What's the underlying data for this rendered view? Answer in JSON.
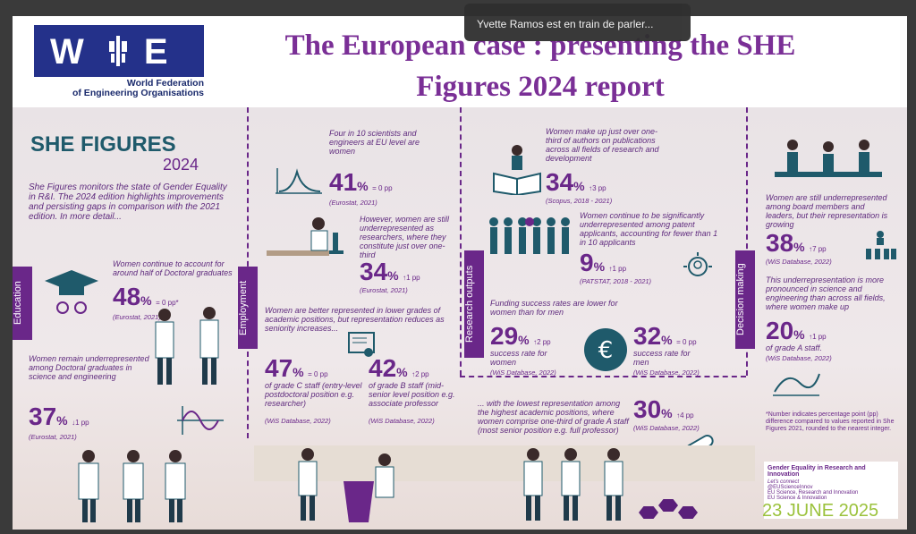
{
  "toast": {
    "text": "Yvette Ramos est en train de parler..."
  },
  "logo": {
    "letters": "W E",
    "org_line1": "World Federation",
    "org_line2": "of Engineering Organisations"
  },
  "slide": {
    "title_line1": "The European case : presenting the SHE",
    "title_line2": "Figures 2024 report",
    "date": "23 JUNE 2025"
  },
  "infographic": {
    "heading": "SHE FIGURES",
    "year": "2024",
    "intro": "She Figures monitors the state of Gender Equality in R&I. The 2024 edition highlights improvements and persisting gaps in comparison with the 2021 edition. In more detail...",
    "sections": {
      "education": "Education",
      "employment": "Employment",
      "research": "Research outputs",
      "decision": "Decision making"
    },
    "edu1": {
      "text": "Women continue to account for around half of Doctoral graduates",
      "value": "48",
      "unit": "%",
      "delta": "= 0 pp*",
      "source": "(Eurostat, 2021)"
    },
    "edu2": {
      "text": "Women remain underrepresented among Doctoral graduates in science and engineering",
      "value": "37",
      "unit": "%",
      "delta": "↓1 pp",
      "source": "(Eurostat, 2021)"
    },
    "emp1": {
      "text": "Four in 10 scientists and engineers at EU level are women",
      "value": "41",
      "unit": "%",
      "delta": "= 0 pp",
      "source": "(Eurostat, 2021)"
    },
    "emp2": {
      "text": "However, women are still underrepresented as researchers, where they constitute just over one-third",
      "value": "34",
      "unit": "%",
      "delta": "↑1 pp",
      "source": "(Eurostat, 2021)"
    },
    "emp3": {
      "text": "Women are better represented in lower grades of academic positions, but representation reduces as seniority increases..."
    },
    "emp4": {
      "value": "47",
      "unit": "%",
      "delta": "= 0 pp",
      "text": "of grade C staff (entry-level postdoctoral position e.g. researcher)",
      "source": "(WiS Database, 2022)"
    },
    "emp5": {
      "value": "42",
      "unit": "%",
      "delta": "↑2 pp",
      "text": "of grade B staff (mid-senior level position e.g. associate professor",
      "source": "(WiS Database, 2022)"
    },
    "res1": {
      "text": "Women make up just over one-third of authors on publications across all fields of research and development",
      "value": "34",
      "unit": "%",
      "delta": "↑3 pp",
      "source": "(Scopus, 2018 - 2021)"
    },
    "res2": {
      "text": "Women continue to be significantly underrepresented among patent applicants, accounting for fewer than 1 in 10 applicants",
      "value": "9",
      "unit": "%",
      "delta": "↑1 pp",
      "source": "(PATSTAT, 2018 - 2021)"
    },
    "res3": {
      "text": "Funding success rates are lower for women than for men"
    },
    "res4": {
      "value": "29",
      "unit": "%",
      "delta": "↑2 pp",
      "text": "success rate for women",
      "source": "(WiS Database, 2022)"
    },
    "res5": {
      "value": "32",
      "unit": "%",
      "delta": "= 0 pp",
      "text": "success rate for men",
      "source": "(WiS Database, 2022)"
    },
    "res6": {
      "text": "... with the lowest representation among the highest academic positions, where women comprise one-third of grade A staff (most senior position e.g. full professor)",
      "value": "30",
      "unit": "%",
      "delta": "↑4 pp",
      "source": "(WiS Database, 2022)"
    },
    "dec1": {
      "text": "Women are still underrepresented among board members and leaders, but their representation is growing",
      "value": "38",
      "unit": "%",
      "delta": "↑7 pp",
      "source": "(WiS Database, 2022)"
    },
    "dec2": {
      "text": "This underrepresentation is more pronounced in science and engineering than across all fields, where women make up",
      "value": "20",
      "unit": "%",
      "delta": "↑1 pp",
      "text2": "of grade A staff.",
      "source": "(WiS Database, 2022)"
    },
    "note": "*Number indicates percentage point (pp) difference compared to values reported in She Figures 2021, rounded to the nearest integer.",
    "footer": {
      "title": "Gender Equality in Research and Innovation",
      "connect": "Let's connect",
      "l1": "@EUScienceInnov",
      "l2": "EU Science, Research and Innovation",
      "l3": "EU Science & Innovation"
    }
  }
}
